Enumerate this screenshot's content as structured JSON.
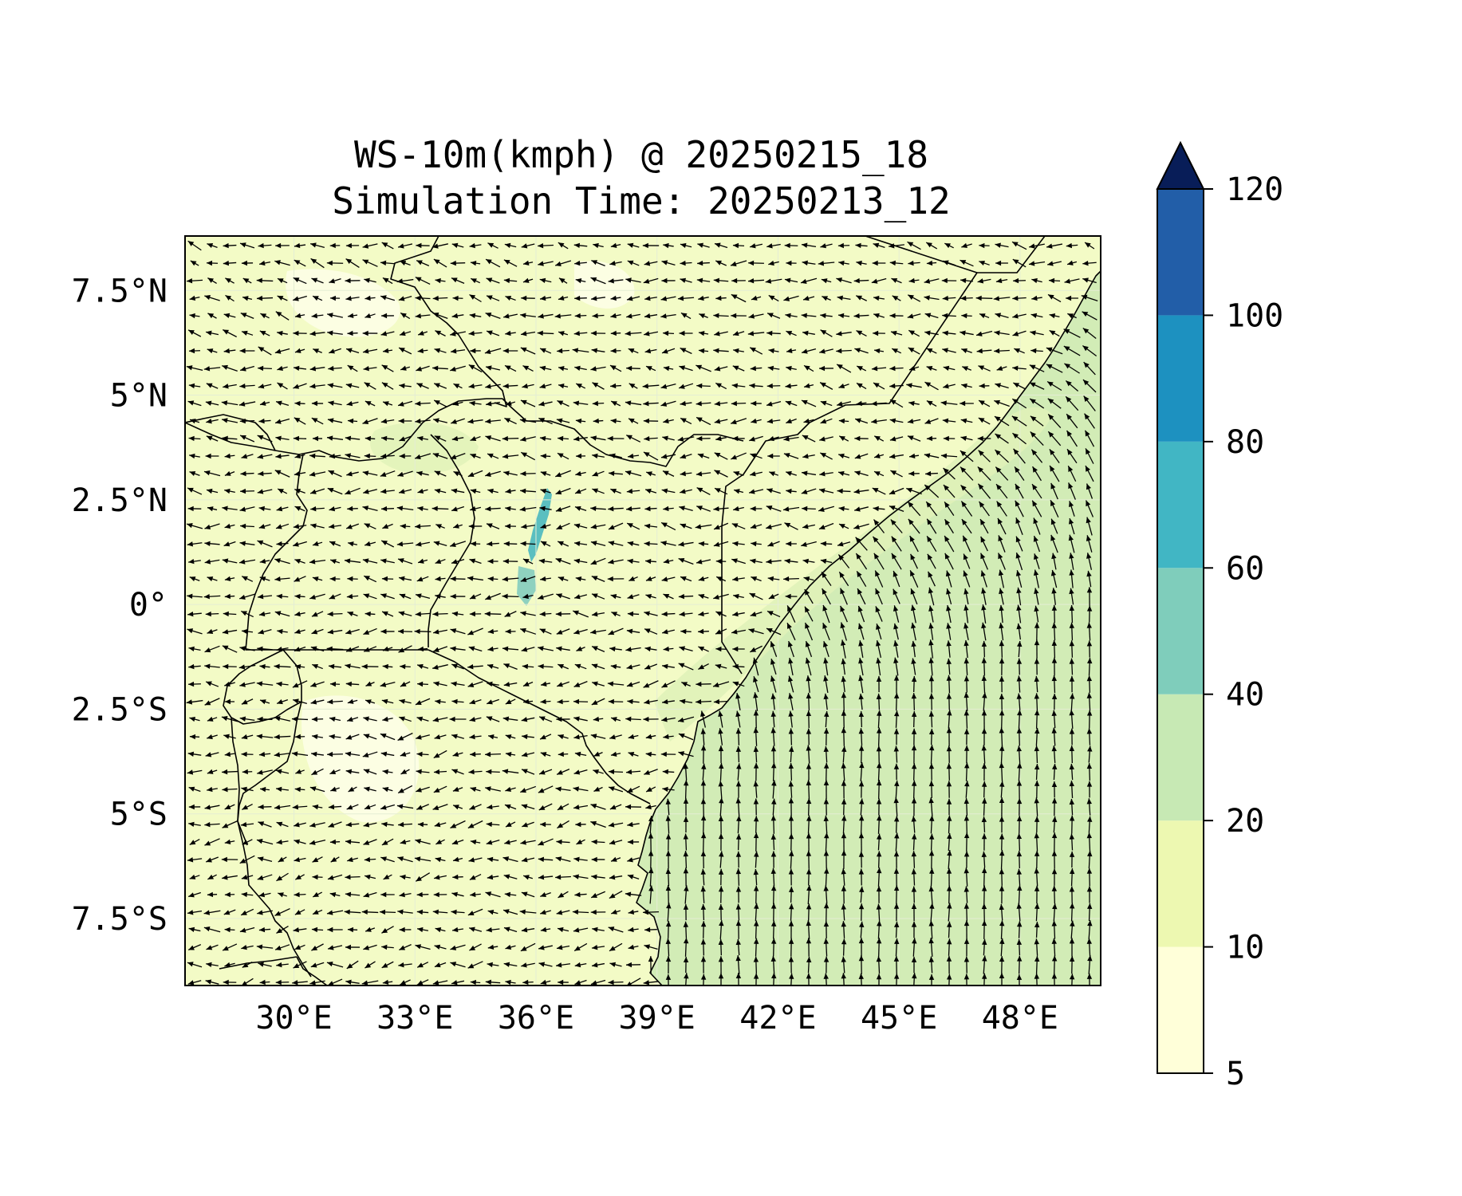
{
  "title": {
    "line1": "WS-10m(kmph) @ 20250215_18",
    "line2": "Simulation Time: 20250213_12"
  },
  "map": {
    "region": "East Africa",
    "projection": "PlateCarree",
    "lon_range": [
      27.3,
      50.0
    ],
    "lat_range": [
      -9.1,
      8.8
    ],
    "x_ticks": [
      {
        "value": 30,
        "label": "30°E"
      },
      {
        "value": 33,
        "label": "33°E"
      },
      {
        "value": 36,
        "label": "36°E"
      },
      {
        "value": 39,
        "label": "39°E"
      },
      {
        "value": 42,
        "label": "42°E"
      },
      {
        "value": 45,
        "label": "45°E"
      },
      {
        "value": 48,
        "label": "48°E"
      }
    ],
    "y_ticks": [
      {
        "value": 7.5,
        "label": "7.5°N"
      },
      {
        "value": 5,
        "label": "5°N"
      },
      {
        "value": 2.5,
        "label": "2.5°N"
      },
      {
        "value": 0,
        "label": "0°"
      },
      {
        "value": -2.5,
        "label": "2.5°S"
      },
      {
        "value": -5,
        "label": "5°S"
      },
      {
        "value": -7.5,
        "label": "7.5°S"
      }
    ],
    "gridlines": true,
    "layers": [
      "filled wind-speed contours",
      "wind vector arrows",
      "country borders",
      "coastline"
    ],
    "colors": {
      "land_low": "#f3fbc6",
      "ocean": "#d2ecb6",
      "lake": "#5bbfc0",
      "border": "#000000",
      "arrow": "#000000"
    }
  },
  "colorbar": {
    "position": "right",
    "extend": "max",
    "levels": [
      5,
      10,
      20,
      40,
      60,
      80,
      100,
      120
    ],
    "labels": [
      "5",
      "10",
      "20",
      "40",
      "60",
      "80",
      "100",
      "120"
    ],
    "colors": [
      "#ffffd9",
      "#edf8b1",
      "#c7e9b4",
      "#7fcdbb",
      "#41b6c4",
      "#1d91c0",
      "#225ea8",
      "#0c2c84"
    ],
    "extend_color": "#081d58"
  }
}
